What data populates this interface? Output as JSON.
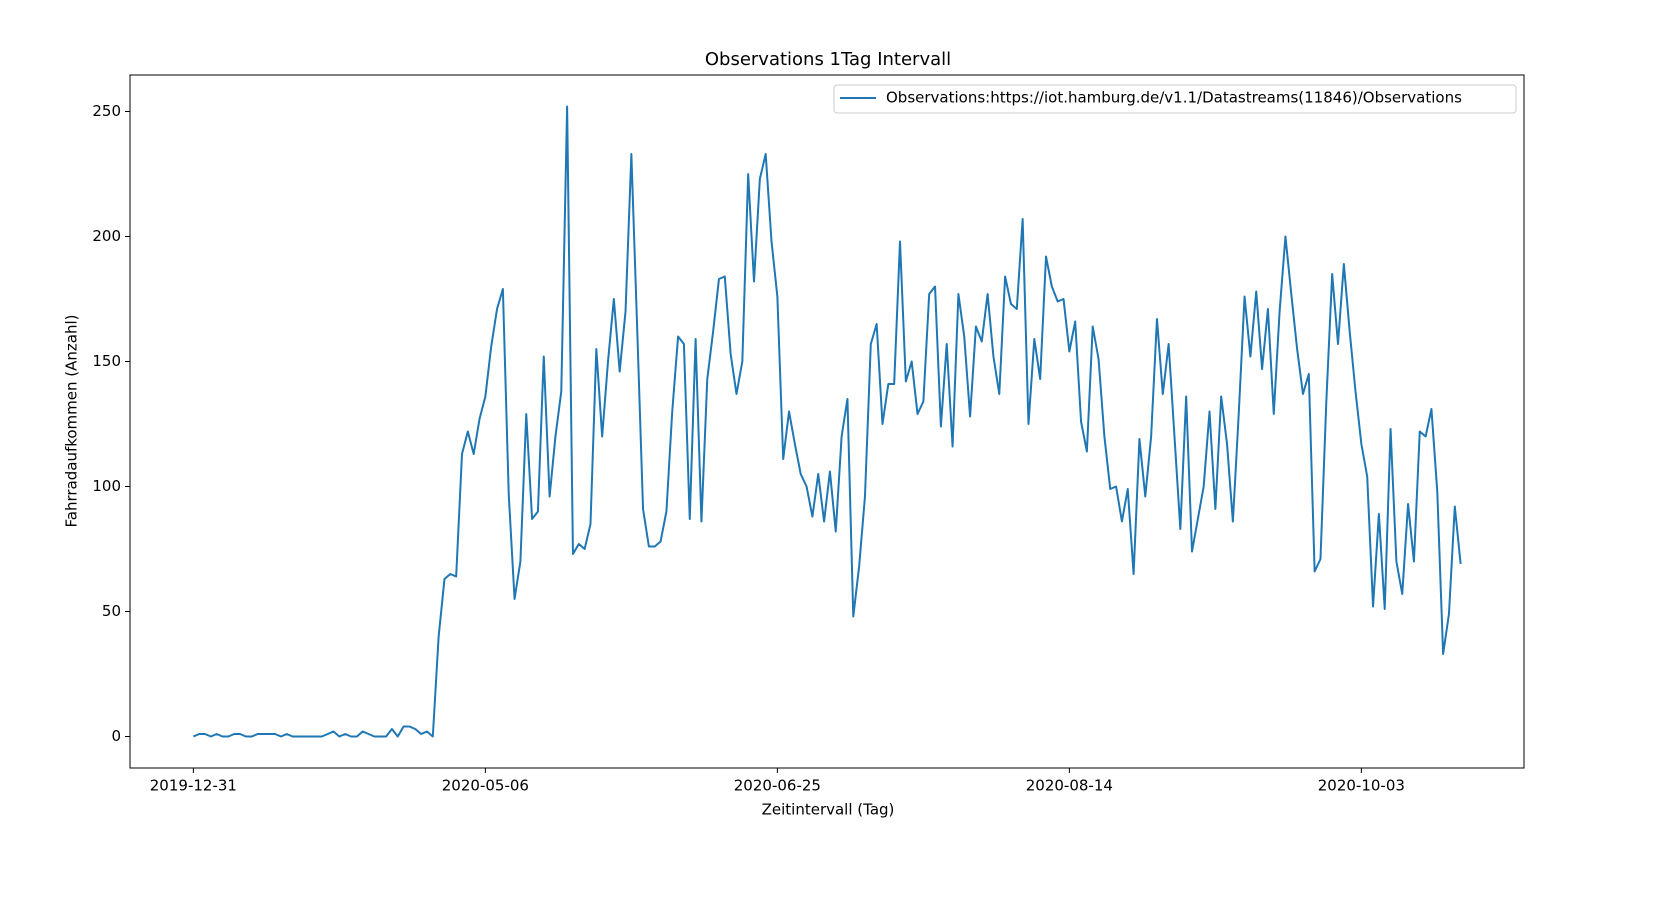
{
  "chart_data": {
    "type": "line",
    "title": "Observations 1Tag Intervall",
    "xlabel": "Zeitintervall (Tag)",
    "ylabel": "Fahrradaufkommen (Anzahl)",
    "categories": [
      "2019-12-31",
      null,
      null,
      null,
      null,
      null,
      null,
      null,
      null,
      null,
      null,
      null,
      null,
      null,
      null,
      null,
      null,
      null,
      null,
      null,
      null,
      null,
      null,
      null,
      null,
      null,
      null,
      null,
      null,
      null,
      null,
      null,
      null,
      null,
      null,
      null,
      null,
      null,
      null,
      null,
      null,
      null,
      null,
      null,
      null,
      null,
      null,
      null,
      null,
      null,
      "2020-05-06",
      null,
      null,
      null,
      null,
      null,
      null,
      null,
      null,
      null,
      null,
      null,
      null,
      null,
      null,
      null,
      null,
      null,
      null,
      null,
      null,
      null,
      null,
      null,
      null,
      null,
      null,
      null,
      null,
      null,
      null,
      null,
      null,
      null,
      null,
      null,
      null,
      null,
      null,
      null,
      null,
      null,
      null,
      null,
      null,
      null,
      null,
      null,
      null,
      null,
      "2020-06-25",
      null,
      null,
      null,
      null,
      null,
      null,
      null,
      null,
      null,
      null,
      null,
      null,
      null,
      null,
      null,
      null,
      null,
      null,
      null,
      null,
      null,
      null,
      null,
      null,
      null,
      null,
      null,
      null,
      null,
      null,
      null,
      null,
      null,
      null,
      null,
      null,
      null,
      null,
      null,
      null,
      null,
      null,
      null,
      null,
      null,
      null,
      null,
      null,
      null,
      "2020-08-14",
      null,
      null,
      null,
      null,
      null,
      null,
      null,
      null,
      null,
      null,
      null,
      null,
      null,
      null,
      null,
      null,
      null,
      null,
      null,
      null,
      null,
      null,
      null,
      null,
      null,
      null,
      null,
      null,
      null,
      null,
      null,
      null,
      null,
      null,
      null,
      null,
      null,
      null,
      null,
      null,
      null,
      null,
      null,
      null,
      null,
      null,
      null,
      null,
      null,
      "2020-10-03",
      null,
      null,
      null,
      null,
      null,
      null,
      null,
      null,
      null,
      null,
      null,
      null,
      null,
      null,
      null,
      null,
      null
    ],
    "series": [
      {
        "name": "Observations:https://iot.hamburg.de/v1.1/Datastreams(11846)/Observations",
        "color": "#1f77b4",
        "values": [
          0,
          1,
          1,
          0,
          1,
          0,
          0,
          1,
          1,
          0,
          0,
          1,
          1,
          1,
          1,
          0,
          1,
          0,
          0,
          0,
          0,
          0,
          0,
          1,
          2,
          0,
          1,
          0,
          0,
          2,
          1,
          0,
          0,
          0,
          3,
          0,
          4,
          4,
          3,
          1,
          2,
          0,
          40,
          63,
          65,
          64,
          113,
          122,
          113,
          127,
          136,
          156,
          171,
          179,
          97,
          55,
          70,
          129,
          87,
          90,
          152,
          96,
          120,
          138,
          252,
          73,
          77,
          75,
          85,
          155,
          120,
          150,
          175,
          146,
          170,
          233,
          163,
          91,
          76,
          76,
          78,
          90,
          130,
          160,
          157,
          87,
          159,
          86,
          143,
          162,
          183,
          184,
          153,
          137,
          150,
          225,
          182,
          223,
          233,
          198,
          176,
          111,
          130,
          117,
          105,
          100,
          88,
          105,
          86,
          106,
          82,
          120,
          135,
          48,
          68,
          96,
          157,
          165,
          125,
          141,
          141,
          198,
          142,
          150,
          129,
          134,
          177,
          180,
          124,
          157,
          116,
          177,
          160,
          128,
          164,
          158,
          177,
          152,
          137,
          184,
          173,
          171,
          207,
          125,
          159,
          143,
          192,
          180,
          174,
          175,
          154,
          166,
          126,
          114,
          164,
          151,
          120,
          99,
          100,
          86,
          99,
          65,
          119,
          96,
          120,
          167,
          137,
          157,
          120,
          83,
          136,
          74,
          87,
          100,
          130,
          91,
          136,
          117,
          86,
          129,
          176,
          152,
          178,
          147,
          171,
          129,
          170,
          200,
          177,
          155,
          137,
          145,
          66,
          71,
          134,
          185,
          157,
          189,
          162,
          138,
          117,
          104,
          52,
          89,
          51,
          123,
          70,
          57,
          93,
          70,
          122,
          120,
          131,
          98,
          33,
          49,
          92,
          69
        ]
      }
    ],
    "ylim": [
      -12.6,
      264.6
    ],
    "yticks": [
      0,
      50,
      100,
      150,
      200,
      250
    ],
    "legend": "upper right"
  }
}
